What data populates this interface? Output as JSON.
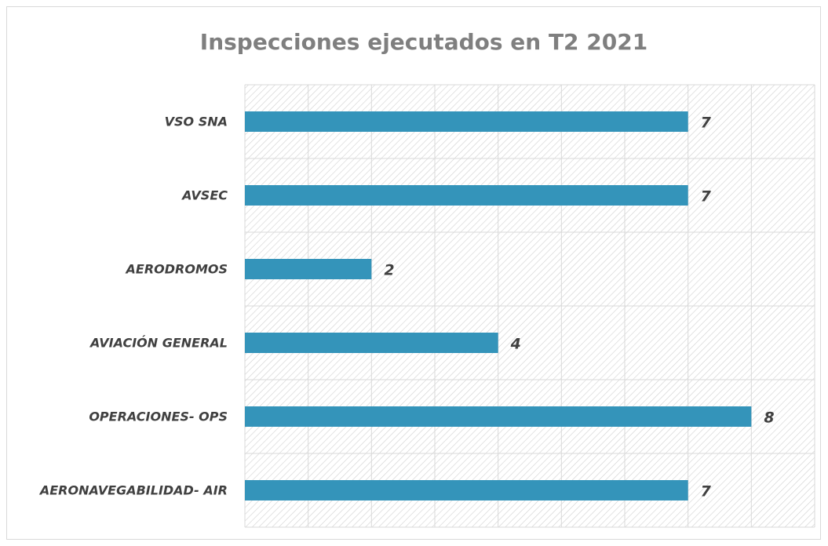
{
  "chart_data": {
    "type": "bar",
    "orientation": "horizontal",
    "title": "Inspecciones ejecutados en T2 2021",
    "categories": [
      "VSO SNA",
      "AVSEC",
      "AERODROMOS",
      "AVIACIÓN GENERAL",
      "OPERACIONES- OPS",
      "AERONAVEGABILIDAD- AIR"
    ],
    "values": [
      7,
      7,
      2,
      4,
      8,
      7
    ],
    "color": "#3494ba",
    "xlim": [
      0,
      9
    ],
    "xticks": [
      0,
      1,
      2,
      3,
      4,
      5,
      6,
      7,
      8,
      9
    ],
    "grid": true
  }
}
